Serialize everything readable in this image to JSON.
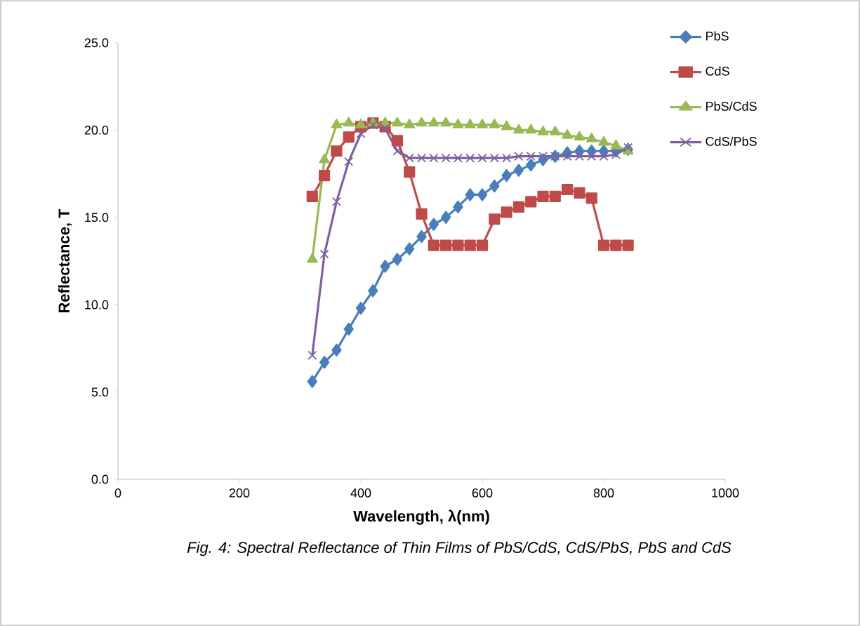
{
  "chart_data": {
    "type": "line",
    "xlabel": "Wavelength, λ(nm)",
    "ylabel": "Reflectance, T",
    "annotations": [
      "Fig. 4: Spectral Reflectance of Thin Films of PbS/CdS, CdS/PbS, PbS and CdS"
    ],
    "x": [
      320,
      340,
      360,
      380,
      400,
      420,
      440,
      460,
      480,
      500,
      520,
      540,
      560,
      580,
      600,
      620,
      640,
      660,
      680,
      700,
      720,
      740,
      760,
      780,
      800,
      820,
      840
    ],
    "series": [
      {
        "name": "PbS",
        "color": "#4a7ebb",
        "marker": "diamond",
        "values": [
          5.6,
          6.7,
          7.4,
          8.6,
          9.8,
          10.8,
          12.2,
          12.6,
          13.2,
          13.9,
          14.6,
          15.0,
          15.6,
          16.3,
          16.3,
          16.8,
          17.4,
          17.7,
          18.0,
          18.3,
          18.5,
          18.7,
          18.8,
          18.8,
          18.8,
          18.8,
          18.9
        ]
      },
      {
        "name": "CdS",
        "color": "#be4b48",
        "marker": "square",
        "values": [
          16.2,
          17.4,
          18.8,
          19.6,
          20.2,
          20.4,
          20.2,
          19.4,
          17.6,
          15.2,
          13.4,
          13.4,
          13.4,
          13.4,
          13.4,
          14.9,
          15.3,
          15.6,
          15.9,
          16.2,
          16.2,
          16.6,
          16.4,
          16.1,
          13.4,
          13.4,
          13.4
        ]
      },
      {
        "name": "PbS/CdS",
        "color": "#98b954",
        "marker": "triangle",
        "values": [
          12.6,
          18.3,
          20.3,
          20.4,
          20.3,
          20.4,
          20.4,
          20.4,
          20.3,
          20.4,
          20.4,
          20.4,
          20.3,
          20.3,
          20.3,
          20.3,
          20.2,
          20.0,
          20.0,
          19.9,
          19.9,
          19.7,
          19.6,
          19.5,
          19.3,
          19.1,
          18.8
        ]
      },
      {
        "name": "CdS/PbS",
        "color": "#7d60a0",
        "marker": "cross",
        "values": [
          7.1,
          12.9,
          15.9,
          18.2,
          19.8,
          20.3,
          20.1,
          18.8,
          18.4,
          18.4,
          18.4,
          18.4,
          18.4,
          18.4,
          18.4,
          18.4,
          18.4,
          18.5,
          18.5,
          18.5,
          18.5,
          18.5,
          18.5,
          18.5,
          18.5,
          18.6,
          19.0
        ]
      }
    ],
    "xlim": [
      0,
      1000
    ],
    "xticks": [
      0,
      200,
      400,
      600,
      800,
      1000
    ],
    "ylim": [
      0,
      25
    ],
    "yticks": [
      {
        "value": 0,
        "label": "0.0"
      },
      {
        "value": 5,
        "label": "5.0"
      },
      {
        "value": 10,
        "label": "10.0"
      },
      {
        "value": 15,
        "label": "15.0"
      },
      {
        "value": 20,
        "label": "20.0"
      },
      {
        "value": 25,
        "label": "25.0"
      }
    ],
    "grid": false,
    "legend": "top right"
  }
}
